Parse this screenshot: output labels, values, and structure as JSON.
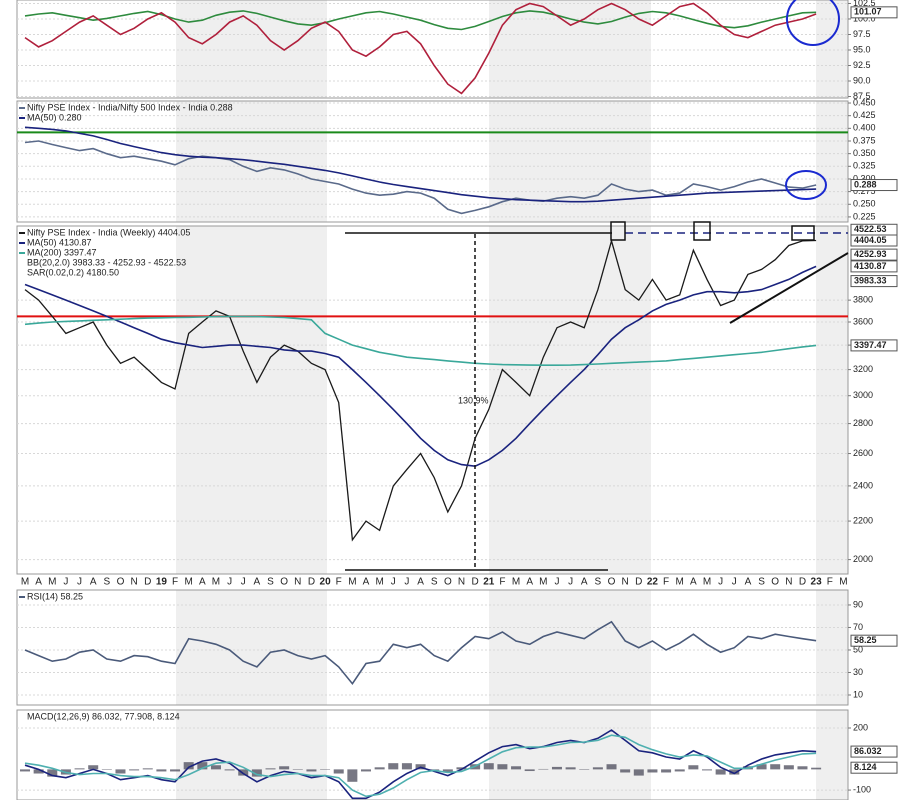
{
  "chart_data": [
    {
      "type": "line",
      "ylim": [
        87.26,
        103.06
      ],
      "yticks": [
        {
          "value": 102.5,
          "label": "102.5"
        },
        {
          "value": 100,
          "label": "100.0"
        },
        97.5,
        {
          "value": 95,
          "label": "95.0"
        },
        92.5,
        {
          "value": 90,
          "label": "90.0"
        },
        87.5
      ],
      "grid": true,
      "last_values": [
        101.07
      ],
      "series": [
        {
          "color": "#2e8b3e",
          "values": [
            100.5,
            100.8,
            101.0,
            100.6,
            100.2,
            99.8,
            100.1,
            100.5,
            100.9,
            101.2,
            100.7,
            100.0,
            99.5,
            99.8,
            100.6,
            101.1,
            101.3,
            100.9,
            100.3,
            99.7,
            99.2,
            99.0,
            99.4,
            100.0,
            100.5,
            101.0,
            101.2,
            100.8,
            100.3,
            99.8,
            99.1,
            98.5,
            98.3,
            98.8,
            99.6,
            100.4,
            101.0,
            101.3,
            101.1,
            100.6,
            100.0,
            99.5,
            99.2,
            99.6,
            100.3,
            100.9,
            101.2,
            101.0,
            100.5,
            99.9,
            99.3,
            98.8,
            98.6,
            98.9,
            99.5,
            100.0,
            100.5,
            101.0,
            101.07,
            null,
            null
          ]
        },
        {
          "color": "#b0203c",
          "values": [
            97.0,
            95.5,
            96.5,
            98.0,
            99.5,
            100.5,
            99.0,
            97.5,
            98.5,
            100.0,
            101.0,
            99.5,
            97.0,
            96.0,
            97.5,
            99.5,
            100.5,
            99.0,
            96.5,
            95.0,
            96.5,
            98.5,
            99.5,
            98.0,
            95.0,
            94.0,
            95.5,
            97.5,
            98.0,
            96.0,
            92.5,
            89.5,
            88.0,
            90.5,
            94.5,
            99.0,
            101.5,
            102.5,
            102.0,
            100.5,
            99.0,
            100.0,
            101.5,
            102.5,
            101.5,
            100.0,
            99.0,
            100.5,
            102.0,
            102.5,
            101.0,
            99.0,
            97.5,
            97.0,
            98.0,
            99.0,
            99.5,
            100.0,
            100.8,
            null,
            null
          ]
        }
      ]
    },
    {
      "type": "line",
      "ylim": [
        0.215,
        0.454
      ],
      "yticks": [
        {
          "value": 0.45,
          "label": "0.450"
        },
        0.425,
        {
          "value": 0.4,
          "label": "0.400"
        },
        0.375,
        {
          "value": 0.35,
          "label": "0.350"
        },
        0.325,
        {
          "value": 0.3,
          "label": "0.300"
        },
        0.275,
        {
          "value": 0.25,
          "label": "0.250"
        },
        0.225
      ],
      "grid": true,
      "hline": {
        "value": 0.392,
        "color": "#1a8a1a"
      },
      "last_values": [
        0.288
      ],
      "series": [
        {
          "name": "Nifty PSE Index - India/Nifty 500 Index - India 0.288",
          "color": "#5a6a8a",
          "values": [
            0.372,
            0.375,
            0.368,
            0.362,
            0.356,
            0.36,
            0.35,
            0.342,
            0.345,
            0.34,
            0.335,
            0.328,
            0.34,
            0.345,
            0.342,
            0.338,
            0.325,
            0.315,
            0.322,
            0.318,
            0.31,
            0.3,
            0.295,
            0.29,
            0.28,
            0.272,
            0.268,
            0.27,
            0.275,
            0.272,
            0.262,
            0.24,
            0.232,
            0.238,
            0.245,
            0.255,
            0.262,
            0.258,
            0.256,
            0.262,
            0.265,
            0.262,
            0.268,
            0.29,
            0.28,
            0.275,
            0.278,
            0.268,
            0.272,
            0.29,
            0.285,
            0.278,
            0.285,
            0.294,
            0.3,
            0.292,
            0.284,
            0.282,
            0.288,
            null,
            null
          ]
        },
        {
          "name": "MA(50) 0.280",
          "color": "#1a237e",
          "values": [
            0.402,
            0.4,
            0.398,
            0.395,
            0.39,
            0.385,
            0.378,
            0.37,
            0.364,
            0.358,
            0.352,
            0.348,
            0.345,
            0.343,
            0.342,
            0.34,
            0.338,
            0.335,
            0.332,
            0.329,
            0.325,
            0.321,
            0.317,
            0.312,
            0.306,
            0.3,
            0.294,
            0.289,
            0.285,
            0.281,
            0.277,
            0.273,
            0.269,
            0.266,
            0.263,
            0.261,
            0.259,
            0.258,
            0.257,
            0.256,
            0.255,
            0.255,
            0.256,
            0.258,
            0.26,
            0.262,
            0.264,
            0.266,
            0.268,
            0.27,
            0.272,
            0.273,
            0.274,
            0.275,
            0.276,
            0.277,
            0.278,
            0.279,
            0.28,
            null,
            null
          ]
        }
      ]
    },
    {
      "type": "line",
      "log_scale": true,
      "ylim": [
        1930,
        4565
      ],
      "yticks": [
        2000,
        2200,
        2400,
        2600,
        2800,
        3000,
        3200,
        3400,
        3600,
        3800
      ],
      "grid": true,
      "hline": {
        "value": 3650,
        "color": "#e01010"
      },
      "annotation": "130.9%",
      "last_values": [
        4522.53,
        4404.05,
        4252.93,
        4130.87,
        3983.33,
        3397.47
      ],
      "legend_extra": [
        "BB(20,2.0) 3983.33 - 4252.93 - 4522.53",
        "SAR(0.02,0.2) 4180.50"
      ],
      "categories": [
        "M",
        "A",
        "M",
        "J",
        "J",
        "A",
        "S",
        "O",
        "N",
        "D",
        "19",
        "F",
        "M",
        "A",
        "M",
        "J",
        "J",
        "A",
        "S",
        "O",
        "N",
        "D",
        "20",
        "F",
        "M",
        "A",
        "M",
        "J",
        "J",
        "A",
        "S",
        "O",
        "N",
        "D",
        "21",
        "F",
        "M",
        "A",
        "M",
        "J",
        "J",
        "A",
        "S",
        "O",
        "N",
        "D",
        "22",
        "F",
        "M",
        "A",
        "M",
        "J",
        "J",
        "A",
        "S",
        "O",
        "N",
        "D",
        "23",
        "F",
        "M"
      ],
      "series": [
        {
          "name": "Nifty PSE Index - India (Weekly) 4404.05",
          "color": "#1a1a1a",
          "values": [
            3900,
            3800,
            3650,
            3500,
            3550,
            3600,
            3400,
            3250,
            3300,
            3200,
            3100,
            3050,
            3500,
            3600,
            3700,
            3650,
            3350,
            3100,
            3300,
            3400,
            3350,
            3250,
            3200,
            2950,
            2100,
            2200,
            2150,
            2400,
            2500,
            2600,
            2450,
            2250,
            2400,
            2700,
            2900,
            3200,
            3100,
            3000,
            3300,
            3550,
            3600,
            3550,
            3900,
            4400,
            3900,
            3800,
            4000,
            3800,
            3850,
            4300,
            4000,
            3750,
            3800,
            4050,
            4100,
            4200,
            4350,
            4400,
            4404.05,
            null,
            null
          ]
        },
        {
          "name": "MA(50) 4130.87",
          "color": "#1a237e",
          "values": [
            3950,
            3900,
            3850,
            3800,
            3750,
            3700,
            3650,
            3600,
            3550,
            3500,
            3450,
            3420,
            3400,
            3380,
            3390,
            3400,
            3400,
            3390,
            3380,
            3360,
            3350,
            3350,
            3330,
            3300,
            3200,
            3100,
            3000,
            2900,
            2800,
            2700,
            2620,
            2560,
            2530,
            2520,
            2560,
            2620,
            2700,
            2800,
            2900,
            3000,
            3100,
            3200,
            3320,
            3450,
            3550,
            3620,
            3700,
            3760,
            3800,
            3850,
            3880,
            3880,
            3870,
            3880,
            3900,
            3950,
            4000,
            4070,
            4130.87,
            null,
            null
          ]
        },
        {
          "name": "MA(200) 3397.47",
          "color": "#3aa89a",
          "values": [
            3580,
            3590,
            3600,
            3605,
            3610,
            3615,
            3620,
            3625,
            3630,
            3635,
            3638,
            3640,
            3642,
            3645,
            3648,
            3650,
            3650,
            3648,
            3645,
            3640,
            3630,
            3620,
            3500,
            3450,
            3400,
            3370,
            3340,
            3320,
            3300,
            3290,
            3280,
            3270,
            3260,
            3250,
            3245,
            3240,
            3238,
            3236,
            3235,
            3235,
            3236,
            3240,
            3245,
            3250,
            3255,
            3260,
            3265,
            3270,
            3280,
            3290,
            3300,
            3310,
            3320,
            3330,
            3340,
            3355,
            3370,
            3385,
            3397.47,
            null,
            null
          ]
        }
      ]
    },
    {
      "type": "line",
      "ylim": [
        1.1,
        103.3
      ],
      "yticks": [
        90,
        70,
        50,
        30,
        10
      ],
      "grid": true,
      "last_values": [
        58.25
      ],
      "series": [
        {
          "name": "RSI(14) 58.25",
          "color": "#4a5a7a",
          "values": [
            50,
            45,
            40,
            42,
            48,
            50,
            42,
            40,
            45,
            44,
            40,
            38,
            60,
            58,
            55,
            50,
            40,
            35,
            48,
            50,
            45,
            42,
            45,
            35,
            20,
            38,
            40,
            55,
            52,
            55,
            45,
            40,
            52,
            62,
            60,
            66,
            58,
            55,
            62,
            66,
            63,
            60,
            68,
            75,
            58,
            52,
            58,
            50,
            56,
            64,
            55,
            48,
            52,
            62,
            60,
            64,
            62,
            60,
            58.25,
            null,
            null
          ]
        }
      ]
    },
    {
      "type": "line",
      "title": "MACD(12,26,9) 86.032, 77.908, 8.124",
      "ylim": [
        -148,
        287
      ],
      "yticks": [
        200,
        -100
      ],
      "grid": true,
      "last_values": [
        86.032,
        8.124
      ],
      "series": [
        {
          "type": "bar",
          "color": "#4a4a5a",
          "values": [
            -10,
            -20,
            -35,
            -25,
            5,
            20,
            0,
            -20,
            -5,
            5,
            -10,
            -10,
            35,
            35,
            20,
            -5,
            -30,
            -35,
            5,
            15,
            0,
            -10,
            0,
            -20,
            -60,
            -10,
            10,
            30,
            30,
            25,
            -5,
            -15,
            10,
            25,
            30,
            25,
            15,
            -8,
            2,
            12,
            10,
            -2,
            10,
            25,
            -15,
            -30,
            -15,
            -15,
            -10,
            20,
            -5,
            -25,
            -25,
            15,
            25,
            25,
            20,
            15,
            8.124,
            null,
            null
          ]
        },
        {
          "color": "#1a237e",
          "values": [
            20,
            0,
            -30,
            -40,
            -20,
            0,
            -20,
            -50,
            -40,
            -30,
            -50,
            -60,
            10,
            40,
            50,
            30,
            -20,
            -60,
            -30,
            -10,
            -20,
            -40,
            -30,
            -60,
            -140,
            -140,
            -110,
            -60,
            -20,
            10,
            -10,
            -30,
            0,
            40,
            80,
            110,
            120,
            100,
            110,
            130,
            140,
            130,
            150,
            190,
            140,
            90,
            80,
            60,
            50,
            90,
            60,
            10,
            -20,
            20,
            50,
            70,
            80,
            90,
            86.032,
            null,
            null
          ]
        },
        {
          "color": "#4fb0b0",
          "values": [
            30,
            20,
            5,
            -15,
            -25,
            -20,
            -20,
            -30,
            -35,
            -35,
            -40,
            -50,
            -25,
            5,
            30,
            35,
            10,
            -25,
            -35,
            -25,
            -20,
            -30,
            -30,
            -40,
            -100,
            -130,
            -120,
            -90,
            -50,
            -15,
            -5,
            -15,
            -10,
            15,
            50,
            85,
            105,
            108,
            108,
            118,
            130,
            132,
            140,
            165,
            155,
            120,
            95,
            75,
            60,
            70,
            65,
            35,
            5,
            5,
            25,
            45,
            60,
            75,
            77.908,
            null,
            null
          ]
        }
      ]
    }
  ]
}
